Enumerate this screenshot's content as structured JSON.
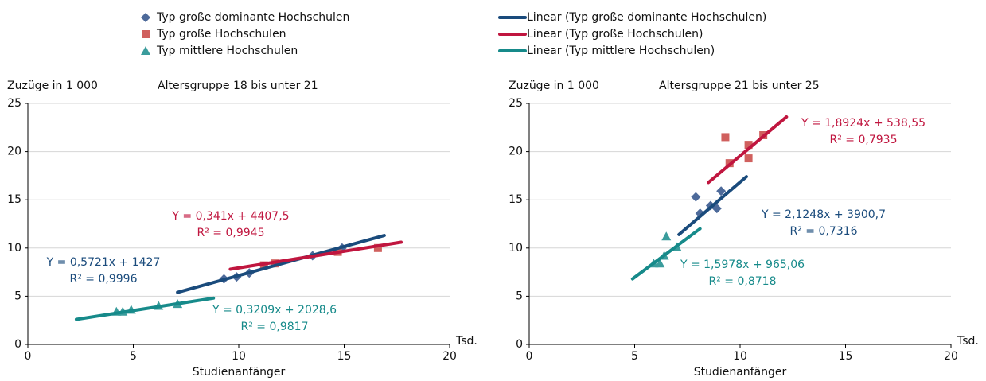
{
  "chart_data": [
    {
      "type": "scatter",
      "title": "Altersgruppe 18 bis unter 21",
      "ylabel": "Zuzüge in 1 000",
      "xlabel": "Studienanfänger",
      "xunit": "Tsd.",
      "xlim": [
        0,
        20
      ],
      "ylim": [
        0,
        25
      ],
      "xticks": [
        0,
        5,
        10,
        15,
        20
      ],
      "yticks": [
        0,
        5,
        10,
        15,
        20,
        25
      ],
      "grid": true,
      "series": [
        {
          "name": "Typ große dominante Hochschulen",
          "color": "#4d6a9a",
          "marker": "diamond",
          "x": [
            9.3,
            9.9,
            10.5,
            13.5,
            14.9
          ],
          "values": [
            6.8,
            7.0,
            7.4,
            9.2,
            10.0
          ]
        },
        {
          "name": "Typ große Hochschulen",
          "color": "#d0605e",
          "marker": "square",
          "x": [
            11.2,
            11.7,
            14.7,
            16.6
          ],
          "values": [
            8.2,
            8.4,
            9.6,
            10.0
          ]
        },
        {
          "name": "Typ mittlere Hochschulen",
          "color": "#3a9c9c",
          "marker": "triangle",
          "x": [
            4.2,
            4.5,
            4.9,
            6.2,
            7.1
          ],
          "values": [
            3.4,
            3.4,
            3.6,
            4.0,
            4.2
          ]
        },
        {
          "name": "Linear (Typ große dominante Hochschulen)",
          "color": "#1a4b7c",
          "marker": "line",
          "x": [
            7.1,
            16.9
          ],
          "values": [
            5.4,
            11.3
          ]
        },
        {
          "name": "Linear (Typ große Hochschulen)",
          "color": "#c0163f",
          "marker": "line",
          "x": [
            9.6,
            17.7
          ],
          "values": [
            7.8,
            10.6
          ]
        },
        {
          "name": "Linear (Typ mittlere Hochschulen)",
          "color": "#168a8a",
          "marker": "line",
          "x": [
            2.3,
            8.8
          ],
          "values": [
            2.6,
            4.8
          ]
        }
      ],
      "annotations": [
        [
          "Y = 0,5721x + 1427",
          "R² = 0,9996"
        ],
        [
          "Y = 0,341x + 4407,5",
          "R² = 0,9945"
        ],
        [
          "Y = 0,3209x + 2028,6",
          "R² = 0,9817"
        ]
      ]
    },
    {
      "type": "scatter",
      "title": "Altersgruppe   21 bis unter 25",
      "ylabel": "Zuzüge in 1 000",
      "xlabel": "Studienanfänger",
      "xunit": "Tsd.",
      "xlim": [
        0,
        20
      ],
      "ylim": [
        0,
        25
      ],
      "xticks": [
        0,
        5,
        10,
        15,
        20
      ],
      "yticks": [
        0,
        5,
        10,
        15,
        20,
        25
      ],
      "grid": true,
      "series": [
        {
          "color": "#4d6a9a",
          "marker": "diamond",
          "x": [
            7.9,
            8.1,
            8.6,
            8.9,
            9.1
          ],
          "values": [
            15.3,
            13.6,
            14.4,
            14.1,
            15.9
          ]
        },
        {
          "color": "#d0605e",
          "marker": "square",
          "x": [
            9.3,
            9.5,
            10.4,
            10.4,
            11.1
          ],
          "values": [
            21.5,
            18.8,
            20.7,
            19.3,
            21.7
          ]
        },
        {
          "color": "#3a9c9c",
          "marker": "triangle",
          "x": [
            5.9,
            6.2,
            6.4,
            6.5,
            7.0
          ],
          "values": [
            8.4,
            8.4,
            9.2,
            11.2,
            10.1
          ]
        },
        {
          "color": "#1a4b7c",
          "marker": "line",
          "x": [
            7.1,
            10.3
          ],
          "values": [
            11.4,
            17.4
          ]
        },
        {
          "color": "#c0163f",
          "marker": "line",
          "x": [
            8.5,
            12.2
          ],
          "values": [
            16.8,
            23.6
          ]
        },
        {
          "color": "#168a8a",
          "marker": "line",
          "x": [
            4.9,
            8.1
          ],
          "values": [
            6.8,
            12.0
          ]
        }
      ],
      "annotations": [
        [
          "Y = 2,1248x + 3900,7",
          "R² = 0,7316"
        ],
        [
          "Y = 1,8924x + 538,55",
          "R² = 0,7935"
        ],
        [
          "Y = 1,5978x + 965,06",
          "R² = 0,8718"
        ]
      ]
    }
  ]
}
